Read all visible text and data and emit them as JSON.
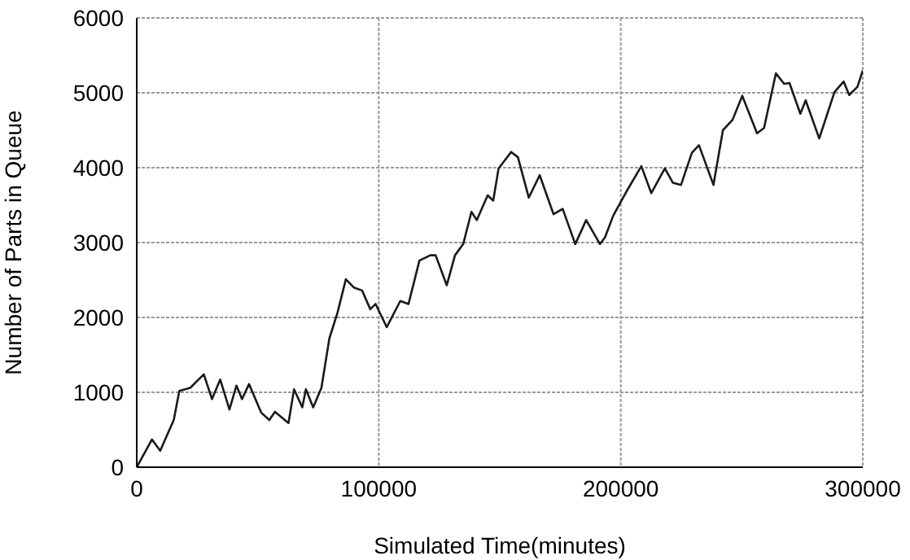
{
  "chart_data": {
    "type": "line",
    "xlabel": "Simulated Time(minutes)",
    "ylabel": "Number of Parts in Queue",
    "xlim": [
      0,
      300000
    ],
    "xticks": [
      0,
      100000,
      200000,
      300000
    ],
    "ylim": [
      0,
      6000
    ],
    "yticks": [
      0,
      1000,
      2000,
      3000,
      4000,
      5000,
      6000
    ],
    "grid": true,
    "legend": false,
    "marker": "none",
    "line_style": "solid",
    "series": [
      {
        "color": "#1a1a1a",
        "x": [
          0,
          6300,
          9700,
          15300,
          17600,
          22100,
          27700,
          31100,
          34500,
          38300,
          41200,
          43500,
          46400,
          51400,
          54800,
          57100,
          62700,
          65000,
          68400,
          69900,
          72900,
          76300,
          79600,
          83000,
          86400,
          89700,
          93100,
          96500,
          98700,
          103300,
          108900,
          112300,
          116800,
          121300,
          123500,
          128100,
          131500,
          134900,
          138300,
          140500,
          145000,
          147300,
          149500,
          154700,
          157500,
          162000,
          166500,
          172200,
          176000,
          181200,
          185700,
          191400,
          193500,
          196900,
          202500,
          208500,
          212600,
          218200,
          221500,
          224900,
          229400,
          232300,
          238300,
          242200,
          246200,
          250200,
          256300,
          259200,
          264100,
          267500,
          269700,
          274200,
          276400,
          282000,
          288300,
          292100,
          294400,
          297800,
          300000
        ],
        "values": [
          0,
          370,
          220,
          630,
          1020,
          1060,
          1240,
          910,
          1170,
          770,
          1090,
          910,
          1110,
          730,
          630,
          740,
          590,
          1040,
          800,
          1040,
          800,
          1060,
          1720,
          2070,
          2510,
          2400,
          2360,
          2110,
          2180,
          1870,
          2220,
          2180,
          2760,
          2830,
          2830,
          2430,
          2830,
          2980,
          3410,
          3300,
          3630,
          3560,
          3990,
          4210,
          4140,
          3600,
          3900,
          3380,
          3450,
          2980,
          3300,
          2980,
          3070,
          3360,
          3690,
          4020,
          3660,
          3990,
          3800,
          3770,
          4200,
          4300,
          3770,
          4500,
          4640,
          4960,
          4460,
          4530,
          5260,
          5120,
          5130,
          4720,
          4900,
          4390,
          5010,
          5150,
          4970,
          5080,
          5300
        ]
      }
    ]
  }
}
